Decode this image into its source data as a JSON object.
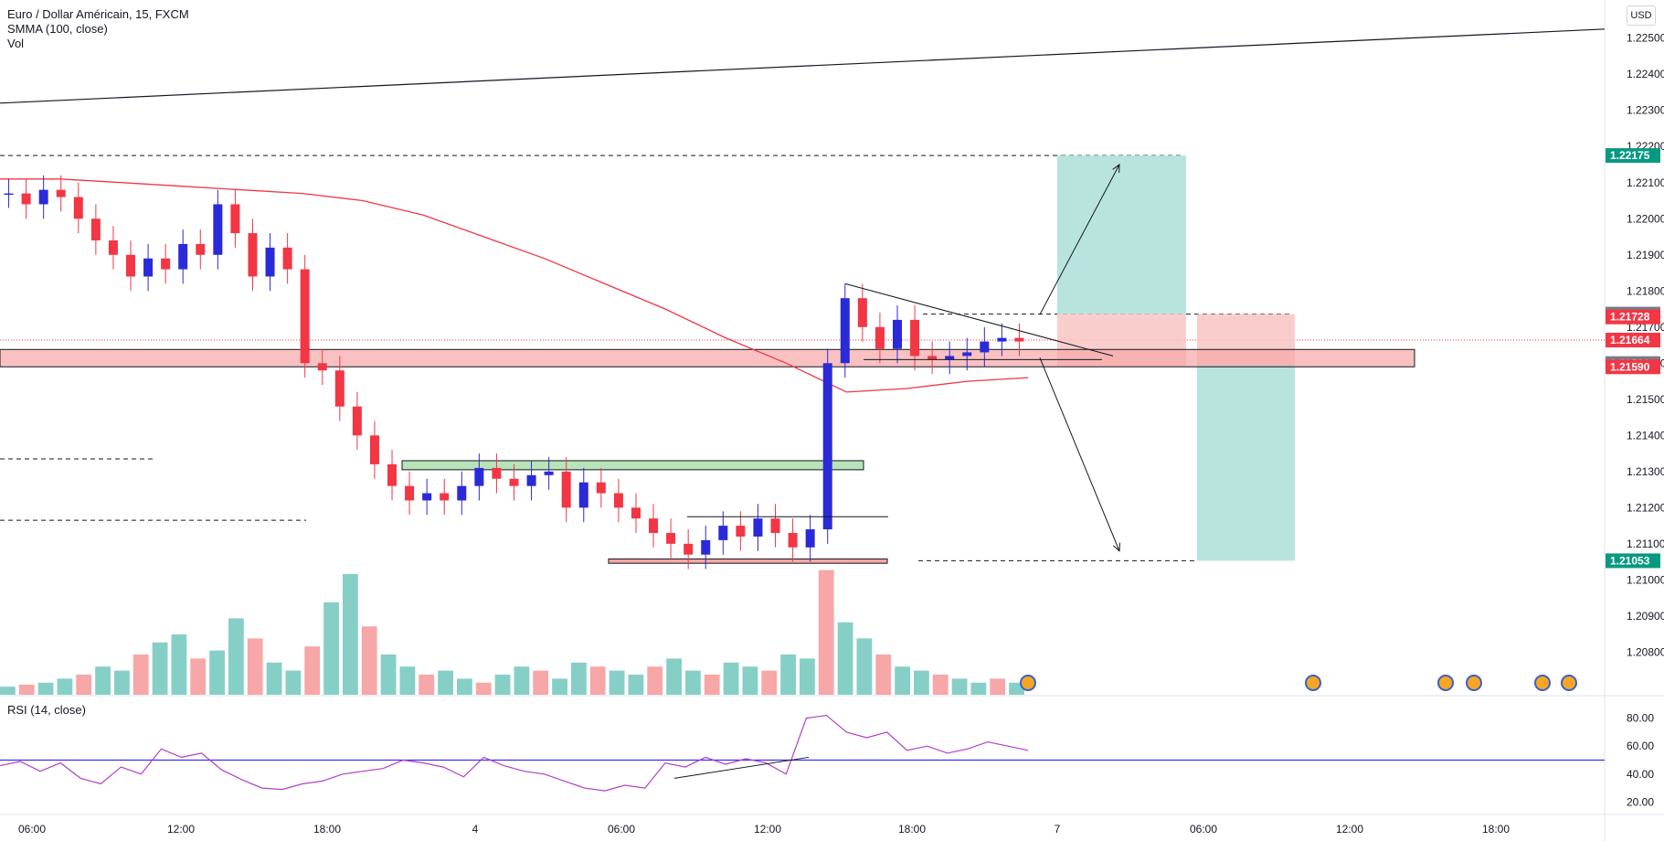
{
  "legend": {
    "symbol": "Euro / Dollar Américain, 15, FXCM",
    "indicator": "SMMA (100, close)",
    "volume": "Vol"
  },
  "rsi_legend": "RSI (14, close)",
  "currency": "USD",
  "colors": {
    "up": "#2a2ad8",
    "down": "#f23645",
    "smma": "#f23645",
    "vol_up": "#86cfc7",
    "vol_down": "#f7a7a7",
    "rsi": "#b040c8",
    "rsi_level": "#3d2bff",
    "target_zone": "#b9e4de",
    "stop_zone": "#f9c4c4",
    "support_zone": "#f7a7a7",
    "resistance_zone": "#b9e4b9",
    "label_green": "#089981",
    "label_red": "#f23645",
    "label_gray": "#787b86"
  },
  "chart_data": {
    "type": "candlestick",
    "title": "Euro / Dollar Américain, 15, FXCM",
    "ylim": [
      1.2072,
      1.2256
    ],
    "y_ticks": [
      "1.22500",
      "1.22400",
      "1.22300",
      "1.22200",
      "1.22100",
      "1.22000",
      "1.21900",
      "1.21800",
      "1.21700",
      "1.21600",
      "1.21500",
      "1.21400",
      "1.21300",
      "1.21200",
      "1.21100",
      "1.21000",
      "1.20900",
      "1.20800"
    ],
    "x_ticks": [
      "06:00",
      "12:00",
      "18:00",
      "4",
      "06:00",
      "12:00",
      "18:00",
      "7",
      "06:00",
      "12:00",
      "18:00"
    ],
    "price_labels": [
      {
        "text": "1.22175",
        "kind": "green",
        "value": 1.22175
      },
      {
        "text": "1.21736",
        "kind": "gray",
        "value": 1.21736
      },
      {
        "text": "1.21728",
        "kind": "red",
        "value": 1.21728
      },
      {
        "text": "1.21664",
        "kind": "red",
        "value": 1.21664
      },
      {
        "text": "1.21599",
        "kind": "gray",
        "value": 1.21599
      },
      {
        "text": "1.21590",
        "kind": "red",
        "value": 1.2159
      },
      {
        "text": "1.21053",
        "kind": "green",
        "value": 1.21053
      }
    ],
    "close_path": [
      1.2207,
      1.2204,
      1.2208,
      1.2206,
      1.22,
      1.2194,
      1.219,
      1.2184,
      1.2189,
      1.2186,
      1.2193,
      1.219,
      1.2204,
      1.2196,
      1.2184,
      1.2192,
      1.2186,
      1.216,
      1.2158,
      1.2148,
      1.214,
      1.2132,
      1.2126,
      1.2122,
      1.2124,
      1.2122,
      1.2126,
      1.2131,
      1.2128,
      1.2126,
      1.2129,
      1.213,
      1.212,
      1.2127,
      1.2124,
      1.212,
      1.2117,
      1.2113,
      1.211,
      1.2107,
      1.2111,
      1.2115,
      1.2112,
      1.2117,
      1.2113,
      1.2109,
      1.2114,
      1.216,
      1.2178,
      1.217,
      1.2164,
      1.2172,
      1.2162,
      1.2161,
      1.2162,
      1.2163,
      1.2166,
      1.2167,
      1.2166
    ],
    "smma": [
      1.2211,
      1.2211,
      1.221,
      1.2209,
      1.2208,
      1.2207,
      1.2205,
      1.2201,
      1.2195,
      1.2189,
      1.2182,
      1.2175,
      1.2167,
      1.216,
      1.2152,
      1.2153,
      1.2155,
      1.2156
    ],
    "volume_levels": [
      4,
      5,
      6,
      8,
      10,
      14,
      12,
      20,
      26,
      30,
      18,
      22,
      38,
      28,
      16,
      12,
      24,
      46,
      60,
      34,
      20,
      14,
      10,
      12,
      8,
      6,
      10,
      14,
      12,
      8,
      16,
      14,
      12,
      10,
      14,
      18,
      12,
      10,
      16,
      14,
      12,
      20,
      18,
      62,
      36,
      28,
      20,
      14,
      12,
      10,
      8,
      6,
      8,
      6
    ],
    "rsi": {
      "ylim": [
        15,
        85
      ],
      "ticks": [
        "80.00",
        "60.00",
        "40.00",
        "20.00"
      ],
      "level": 50,
      "values": [
        46,
        49,
        42,
        48,
        37,
        33,
        45,
        40,
        58,
        52,
        55,
        43,
        36,
        30,
        29,
        33,
        35,
        40,
        42,
        44,
        50,
        48,
        45,
        38,
        52,
        46,
        42,
        40,
        35,
        30,
        28,
        32,
        30,
        48,
        45,
        52,
        47,
        51,
        48,
        40,
        80,
        82,
        70,
        66,
        70,
        57,
        60,
        55,
        58,
        63,
        60,
        57
      ]
    },
    "annotations": {
      "horizontal_levels": [
        1.22175,
        1.21736,
        1.21599,
        1.21053
      ],
      "support_zone": [
        1.2159,
        1.21638
      ],
      "resistance_zone": [
        1.21305,
        1.2133
      ],
      "base_zone": [
        1.21046,
        1.21058
      ]
    }
  }
}
